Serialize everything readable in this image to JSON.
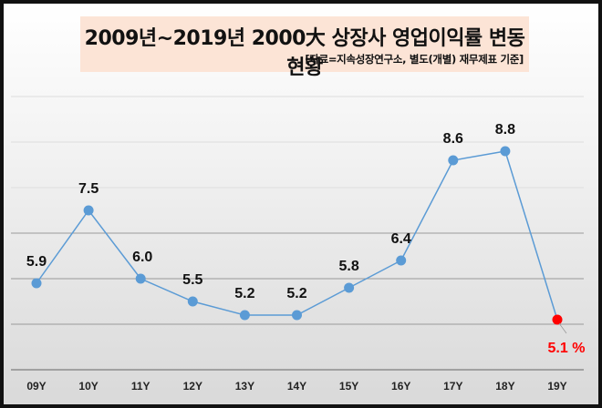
{
  "chart_data": {
    "type": "line",
    "title": "2009년~2019년 2000大 상장사 영업이익률 변동 현황",
    "subtitle": "[자료=지속성장연구소, 별도(개별) 재무제표 기준]",
    "categories": [
      "09Y",
      "10Y",
      "11Y",
      "12Y",
      "13Y",
      "14Y",
      "15Y",
      "16Y",
      "17Y",
      "18Y",
      "19Y"
    ],
    "series": [
      {
        "name": "영업이익률",
        "values": [
          5.9,
          7.5,
          6.0,
          5.5,
          5.2,
          5.2,
          5.8,
          6.4,
          8.6,
          8.8,
          5.1
        ]
      }
    ],
    "data_labels": [
      "5.9",
      "7.5",
      "6.0",
      "5.5",
      "5.2",
      "5.2",
      "5.8",
      "6.4",
      "8.6",
      "8.8",
      "5.1 %"
    ],
    "xlabel": "",
    "ylabel": "",
    "ylim": [
      4,
      10
    ],
    "gridlines": [
      5,
      6,
      7,
      8,
      9,
      10
    ],
    "grid": true,
    "legend": "none",
    "colors": {
      "line": "#5b9bd5",
      "highlight": "#ff0000"
    }
  }
}
